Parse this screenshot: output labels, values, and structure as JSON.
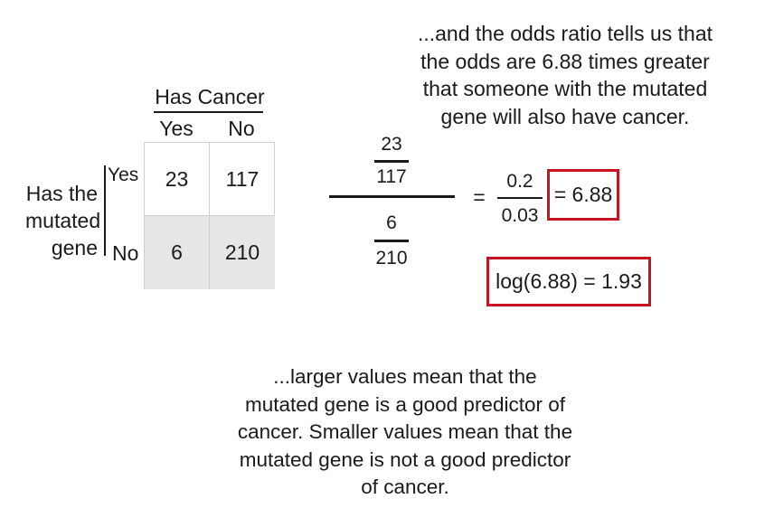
{
  "top_text": [
    "...and the odds ratio tells us that",
    "the odds are 6.88 times greater",
    "that someone with the mutated",
    "gene will also have cancer."
  ],
  "table": {
    "col_header": "Has Cancer",
    "col_labels": [
      "Yes",
      "No"
    ],
    "row_header": [
      "Has the",
      "mutated",
      "gene"
    ],
    "row_labels": [
      "Yes",
      "No"
    ],
    "cells": [
      [
        "23",
        "117"
      ],
      [
        "6",
        "210"
      ]
    ]
  },
  "fraction": {
    "top_num": "23",
    "top_den": "117",
    "bottom_num": "6",
    "bottom_den": "210",
    "equals": "=",
    "ratio_num": "0.2",
    "ratio_den": "0.03",
    "result": "= 6.88",
    "log_result": "log(6.88) = 1.93"
  },
  "bottom_text": [
    "...larger values mean that the",
    "mutated gene is a good predictor of",
    "cancer. Smaller values mean that the",
    "mutated gene is not a good predictor",
    "of cancer."
  ],
  "colors": {
    "highlight_box": "#c8141e",
    "shaded_cell": "#e6e6e6"
  }
}
